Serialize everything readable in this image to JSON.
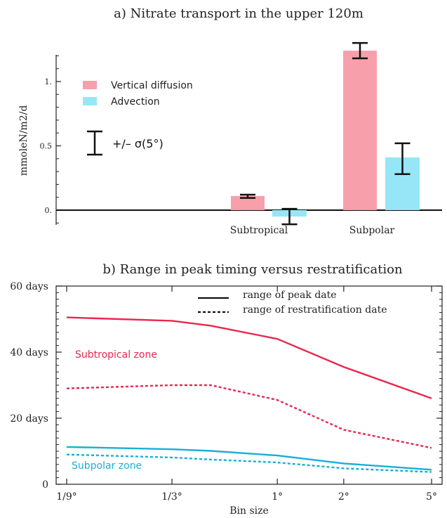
{
  "chart_data": [
    {
      "type": "bar",
      "title": "a) Nitrate transport in the upper 120m",
      "ylabel": "mmoleN/m2/d",
      "xlabel": "",
      "ylim": [
        -0.12,
        1.22
      ],
      "yticks": [
        0,
        0.5,
        1
      ],
      "ytick_labels": [
        "0.",
        "0.5",
        "1."
      ],
      "categories": [
        "Subtropical",
        "Subpolar"
      ],
      "series": [
        {
          "name": "Vertical diffusion",
          "color": "#f7a0ac",
          "values": [
            0.11,
            1.24
          ],
          "err_low": [
            0.095,
            1.18
          ],
          "err_high": [
            0.12,
            1.3
          ]
        },
        {
          "name": "Advection",
          "color": "#96e6f7",
          "values": [
            -0.05,
            0.41
          ],
          "err_low": [
            -0.11,
            0.28
          ],
          "err_high": [
            0.01,
            0.52
          ]
        }
      ],
      "errorbar_legend": "+/– σ(5°)",
      "legend_position": "top-left",
      "grid": false
    },
    {
      "type": "line",
      "title": "b) Range in peak timing  versus restratification",
      "xlabel": "Bin size",
      "ylabel": "",
      "x_scale": "log",
      "x": [
        0.111,
        0.333,
        0.5,
        1,
        2,
        5
      ],
      "xticks": [
        0.111,
        0.333,
        1,
        2,
        5
      ],
      "xtick_labels": [
        "1/9°",
        "1/3°",
        "1°",
        "2°",
        "5°"
      ],
      "ylim": [
        0,
        60
      ],
      "yticks": [
        0,
        20,
        40,
        60
      ],
      "ytick_labels": [
        "0",
        "20 days",
        "40 days",
        "60 days"
      ],
      "series": [
        {
          "zone": "subtropical",
          "kind": "peak",
          "color": "#e8284e",
          "dash": false,
          "values": [
            50.5,
            49.5,
            48.0,
            44.0,
            35.5,
            26.0
          ]
        },
        {
          "zone": "subtropical",
          "kind": "restrat",
          "color": "#e8284e",
          "dash": true,
          "values": [
            29.0,
            30.0,
            30.0,
            25.5,
            16.5,
            11.0
          ]
        },
        {
          "zone": "subpolar",
          "kind": "peak",
          "color": "#18afd8",
          "dash": false,
          "values": [
            11.3,
            10.6,
            10.1,
            8.7,
            6.3,
            4.4
          ]
        },
        {
          "zone": "subpolar",
          "kind": "restrat",
          "color": "#18afd8",
          "dash": true,
          "values": [
            9.0,
            8.1,
            7.5,
            6.6,
            4.8,
            3.7
          ]
        }
      ],
      "legend": [
        {
          "label": "range of  peak date",
          "dash": false
        },
        {
          "label": "range  of restratification date",
          "dash": true
        }
      ],
      "legend_position": "top",
      "annotations": [
        {
          "text": "Subtropical zone",
          "color": "#e8284e"
        },
        {
          "text": "Subpolar zone",
          "color": "#18afd8"
        }
      ],
      "grid": false
    }
  ]
}
